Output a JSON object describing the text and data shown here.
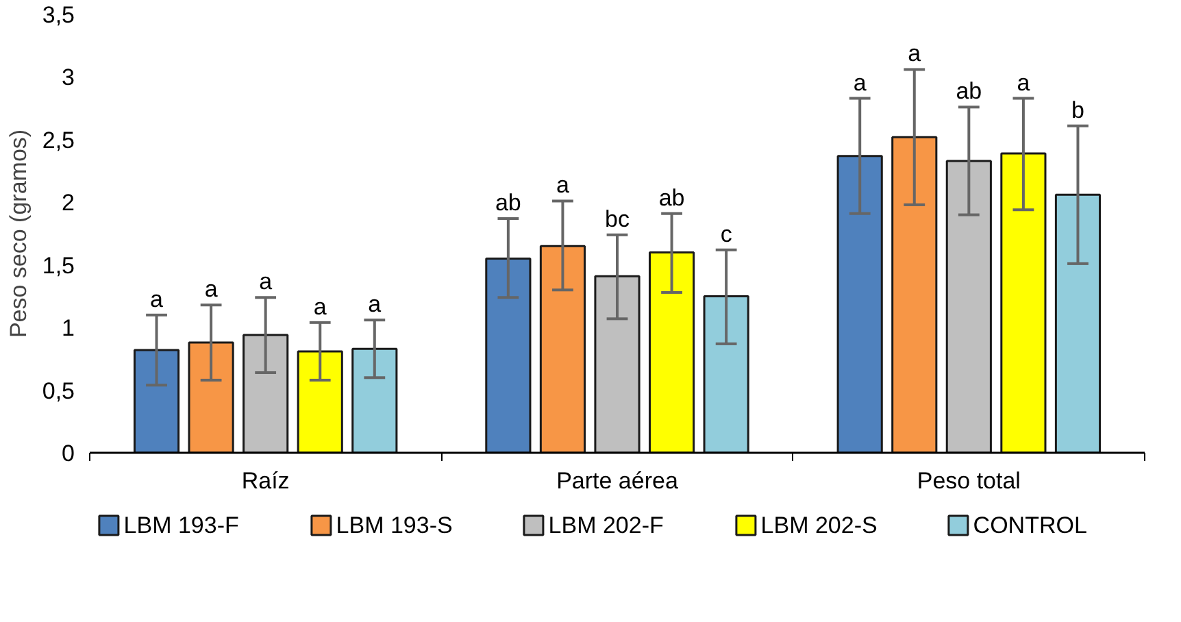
{
  "chart_data": {
    "type": "bar",
    "ylabel": "Peso seco (gramos)",
    "categories": [
      "Raíz",
      "Parte aérea",
      "Peso total"
    ],
    "series": [
      {
        "name": "LBM 193-F",
        "color": "#4f81bd",
        "values": [
          0.82,
          1.55,
          2.37
        ],
        "errors": [
          [
            0.54,
            1.1
          ],
          [
            1.24,
            1.87
          ],
          [
            1.91,
            2.83
          ]
        ],
        "value_labels": [
          "a",
          "ab",
          "a"
        ]
      },
      {
        "name": "LBM 193-S",
        "color": "#f79646",
        "values": [
          0.88,
          1.65,
          2.52
        ],
        "errors": [
          [
            0.58,
            1.18
          ],
          [
            1.3,
            2.01
          ],
          [
            1.98,
            3.06
          ]
        ],
        "value_labels": [
          "a",
          "a",
          "a"
        ]
      },
      {
        "name": "LBM 202-F",
        "color": "#bfbfbf",
        "values": [
          0.94,
          1.41,
          2.33
        ],
        "errors": [
          [
            0.64,
            1.24
          ],
          [
            1.07,
            1.74
          ],
          [
            1.9,
            2.76
          ]
        ],
        "value_labels": [
          "a",
          "bc",
          "ab"
        ]
      },
      {
        "name": "LBM 202-S",
        "color": "#ffff00",
        "values": [
          0.81,
          1.6,
          2.39
        ],
        "errors": [
          [
            0.58,
            1.04
          ],
          [
            1.28,
            1.91
          ],
          [
            1.94,
            2.83
          ]
        ],
        "value_labels": [
          "a",
          "ab",
          "a"
        ]
      },
      {
        "name": "CONTROL",
        "color": "#92cddc",
        "values": [
          0.83,
          1.25,
          2.06
        ],
        "errors": [
          [
            0.6,
            1.06
          ],
          [
            0.87,
            1.62
          ],
          [
            1.51,
            2.61
          ]
        ],
        "value_labels": [
          "a",
          "c",
          "b"
        ]
      }
    ],
    "ylim": [
      0,
      3.5
    ],
    "yticks": [
      0,
      {
        "value": 0.5,
        "label": "0,5"
      },
      1,
      {
        "value": 1.5,
        "label": "1,5"
      },
      2,
      {
        "value": 2.5,
        "label": "2,5"
      },
      3,
      {
        "value": 3.5,
        "label": "3,5"
      }
    ],
    "grid": false,
    "legend": "bottom"
  }
}
